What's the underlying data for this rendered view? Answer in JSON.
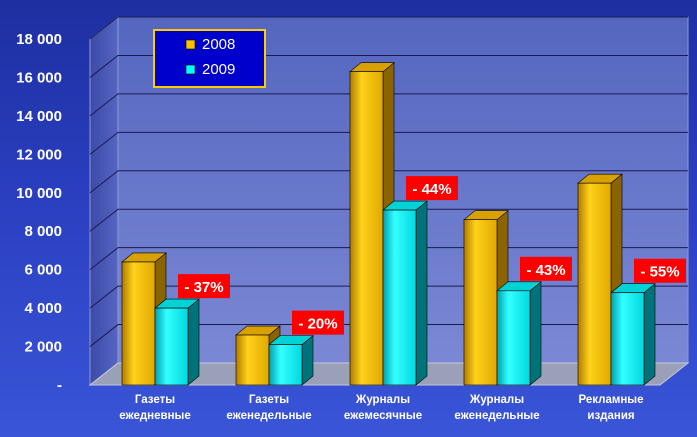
{
  "chart_data": {
    "type": "bar",
    "categories": [
      [
        "Газеты",
        "ежедневные"
      ],
      [
        "Газеты",
        "еженедельные"
      ],
      [
        "Журналы",
        "ежемесячные"
      ],
      [
        "Журналы",
        "еженедельные"
      ],
      [
        "Рекламные",
        "издания"
      ]
    ],
    "series": [
      {
        "name": "2008",
        "values": [
          6400,
          2600,
          16300,
          8600,
          10500
        ],
        "color": "#ffc000"
      },
      {
        "name": "2009",
        "values": [
          4000,
          2100,
          9100,
          4900,
          4800
        ],
        "color": "#00ffff"
      }
    ],
    "y_ticks": [
      "-",
      "2 000",
      "4 000",
      "6 000",
      "8 000",
      "10 000",
      "12 000",
      "14 000",
      "16 000",
      "18 000"
    ],
    "ylim": [
      0,
      18000
    ],
    "annotations": [
      "- 37%",
      "- 20%",
      "- 44%",
      "- 43%",
      "- 55%"
    ],
    "legend_position": "top-left",
    "grid": true
  },
  "colors": {
    "annotation_bg": "#ff0000",
    "legend_bg": "#0000cc",
    "legend_border": "#ffcc00",
    "wall": "#6878c8",
    "floor": "#9aa0b8"
  }
}
